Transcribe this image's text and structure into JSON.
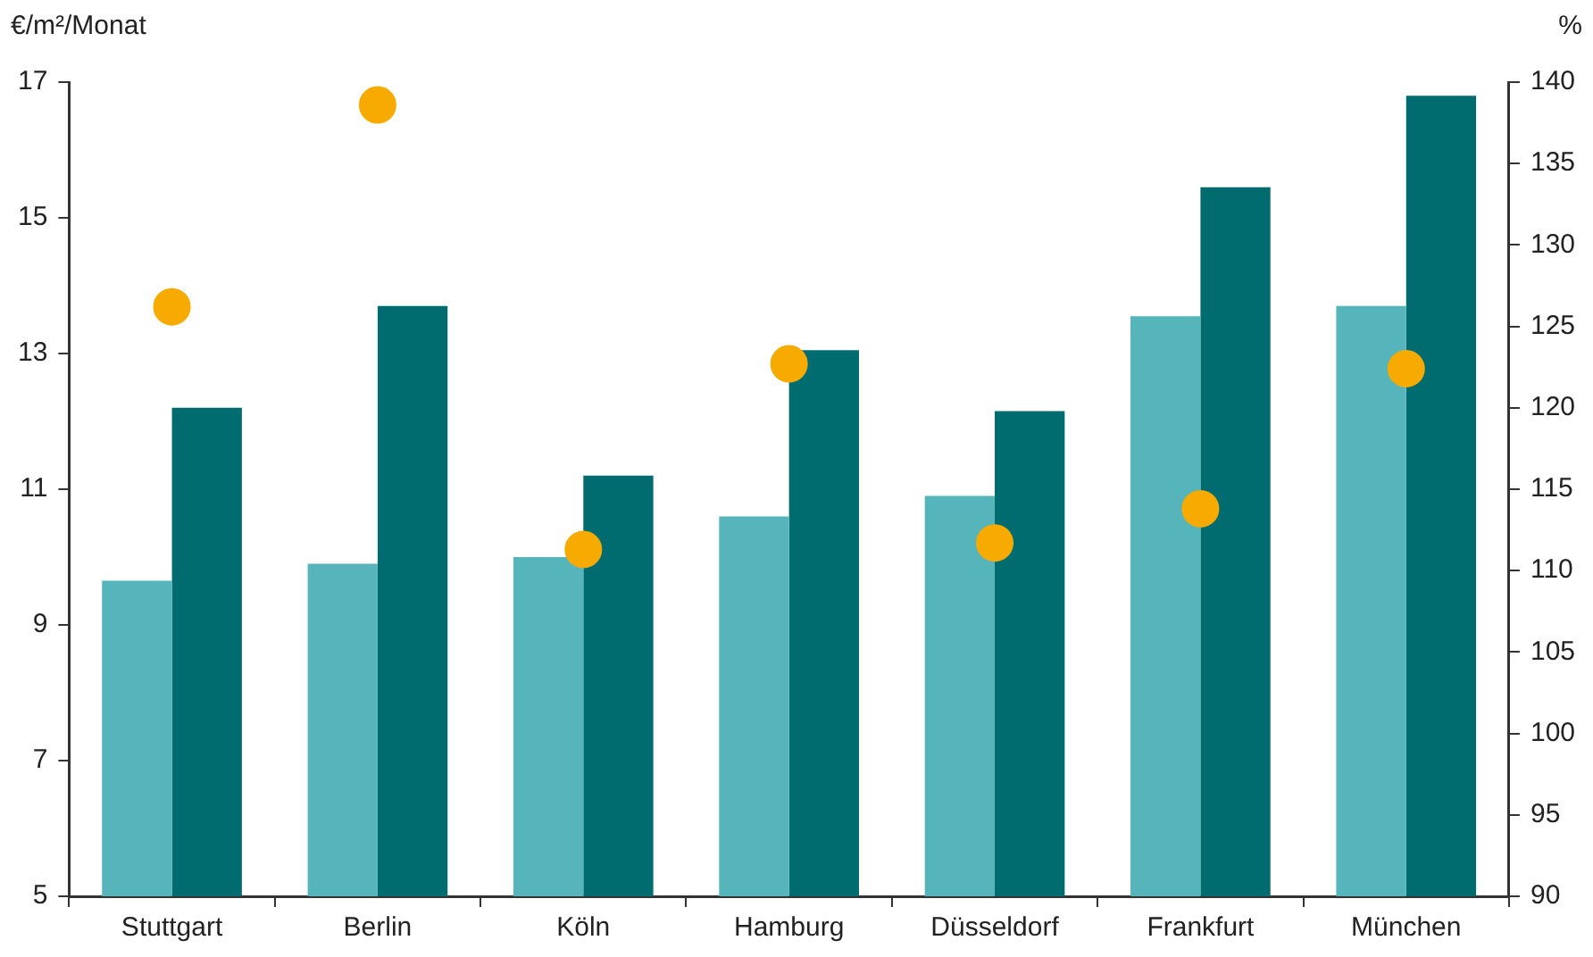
{
  "chart_data": {
    "type": "bar",
    "ylabel": "€/m²/Monat",
    "y2label": "%",
    "categories": [
      "Stuttgart",
      "Berlin",
      "Köln",
      "Hamburg",
      "Düsseldorf",
      "Frankfurt",
      "München"
    ],
    "series": [
      {
        "color": "#55b5bb",
        "values": [
          9.65,
          9.9,
          10.0,
          10.6,
          10.9,
          13.55,
          13.7
        ]
      },
      {
        "color": "#006c70",
        "values": [
          12.2,
          13.7,
          11.2,
          13.05,
          12.15,
          15.45,
          16.8
        ]
      },
      {
        "type": "scatter",
        "axis": "y2",
        "color": "#f7aa00",
        "x": [
          "Stuttgart",
          "Berlin",
          "Köln",
          "Hamburg",
          "Düsseldorf",
          "Frankfurt",
          "München"
        ],
        "values": [
          126.2,
          138.6,
          111.3,
          122.7,
          111.7,
          113.8,
          122.4
        ]
      }
    ],
    "ylim": [
      5,
      17
    ],
    "yticks": [
      5,
      7,
      9,
      11,
      13,
      15,
      17
    ],
    "y2lim": [
      90,
      140
    ],
    "y2ticks": [
      90,
      95,
      100,
      105,
      110,
      115,
      120,
      125,
      130,
      135,
      140
    ],
    "grid": false,
    "legend": false,
    "marker": "circle"
  }
}
